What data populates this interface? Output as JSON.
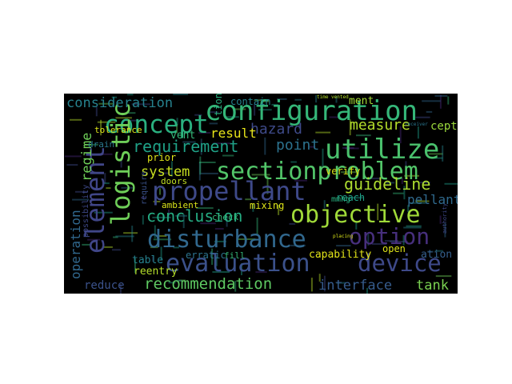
{
  "background": "#000000",
  "words": [
    {
      "text": "configuration",
      "color": "#35b779"
    },
    {
      "text": "concept",
      "color": "#2ab07f"
    },
    {
      "text": "utilize",
      "color": "#4ac16d"
    },
    {
      "text": "logistic",
      "color": "#6ece58"
    },
    {
      "text": "element",
      "color": "#404688"
    },
    {
      "text": "propellant",
      "color": "#3e4989"
    },
    {
      "text": "sectionproblem",
      "color": "#52c569"
    },
    {
      "text": "objective",
      "color": "#a0da39"
    },
    {
      "text": "disturbance",
      "color": "#31688e"
    },
    {
      "text": "option",
      "color": "#472f7d"
    },
    {
      "text": "evaluation",
      "color": "#3b518b"
    },
    {
      "text": "device",
      "color": "#3e4989"
    },
    {
      "text": "recommendation",
      "color": "#5ec962"
    },
    {
      "text": "interface",
      "color": "#365c8d"
    },
    {
      "text": "tank",
      "color": "#7ad151"
    },
    {
      "text": "requirement",
      "color": "#1fa187"
    },
    {
      "text": "conclusion",
      "color": "#25ac82"
    },
    {
      "text": "consideration",
      "color": "#26828e"
    },
    {
      "text": "measure",
      "color": "#b5de2b"
    },
    {
      "text": "guideline",
      "color": "#addc30"
    },
    {
      "text": "hazard",
      "color": "#3e4a89"
    },
    {
      "text": "system",
      "color": "#c8e020"
    },
    {
      "text": "regime",
      "color": "#6ece58"
    },
    {
      "text": "operation",
      "color": "#31688e"
    },
    {
      "text": "point",
      "color": "#2c728e"
    },
    {
      "text": "result",
      "color": "#e7e419"
    },
    {
      "text": "reduce",
      "color": "#3b528b"
    },
    {
      "text": "pellant",
      "color": "#306a8e"
    },
    {
      "text": "contain",
      "color": "#25838e"
    },
    {
      "text": "vent",
      "color": "#35b779"
    },
    {
      "text": "cept",
      "color": "#9bd93c"
    },
    {
      "text": "ment",
      "color": "#a5db36"
    },
    {
      "text": "tion",
      "color": "#29af7f"
    },
    {
      "text": "ation",
      "color": "#355f8d"
    },
    {
      "text": "table",
      "color": "#26818e"
    },
    {
      "text": "reentry",
      "color": "#b5de2b"
    },
    {
      "text": "prior",
      "color": "#dde318"
    },
    {
      "text": "capability",
      "color": "#e2e418"
    },
    {
      "text": "open",
      "color": "#dde318"
    },
    {
      "text": "erratic",
      "color": "#2c738e"
    },
    {
      "text": "fill",
      "color": "#35b779"
    },
    {
      "text": "mixing",
      "color": "#dde318"
    },
    {
      "text": "ambient",
      "color": "#d8e219"
    },
    {
      "text": "doors",
      "color": "#c2df23"
    },
    {
      "text": "check",
      "color": "#35b779"
    },
    {
      "text": "verify",
      "color": "#d8e219"
    },
    {
      "text": "reach",
      "color": "#1fa188"
    },
    {
      "text": "drain",
      "color": "#2a788e"
    },
    {
      "text": "tolerance",
      "color": "#dde318"
    },
    {
      "text": "require",
      "color": "#3b528b"
    },
    {
      "text": "possibility",
      "color": "#3e4989"
    },
    {
      "text": "time vented",
      "color": "#b5de2b"
    },
    {
      "text": "placing",
      "color": "#d8e219"
    },
    {
      "text": "mmhg",
      "color": "#29af7f"
    },
    {
      "text": "authority",
      "color": "#3e4989"
    },
    {
      "text": "receiver",
      "color": "#2a768e"
    }
  ]
}
